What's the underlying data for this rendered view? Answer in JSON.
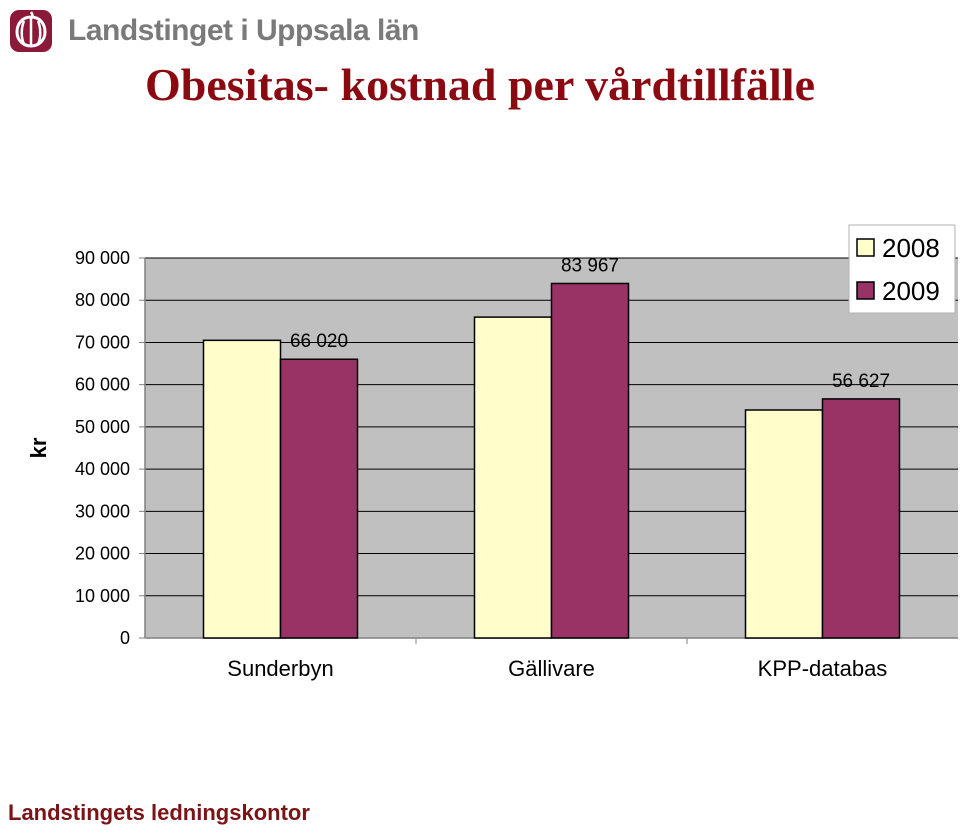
{
  "header": {
    "logo_text": "Landstinget i Uppsala län"
  },
  "footer": {
    "text": "Landstingets ledningskontor"
  },
  "colors": {
    "title": "#8b0a12",
    "plot_bg": "#c0c0c0",
    "series_2008": "#ffffcc",
    "series_2009": "#993366",
    "footer": "#7a1416",
    "logo": "#8b1a3a"
  },
  "chart_data": {
    "type": "bar",
    "title": "Obesitas- kostnad per vårdtillfälle",
    "xlabel": "",
    "ylabel": "kr",
    "categories": [
      "Sunderbyn",
      "Gällivare",
      "KPP-databas"
    ],
    "series": [
      {
        "name": "2008",
        "values": [
          70500,
          76000,
          54000
        ],
        "labels": [
          "",
          "",
          ""
        ]
      },
      {
        "name": "2009",
        "values": [
          66020,
          83967,
          56627
        ],
        "labels": [
          "66 020",
          "83 967",
          "56 627"
        ]
      }
    ],
    "ylim": [
      0,
      90000
    ],
    "yticks": [
      0,
      10000,
      20000,
      30000,
      40000,
      50000,
      60000,
      70000,
      80000,
      90000
    ],
    "ytick_labels": [
      "0",
      "10 000",
      "20 000",
      "30 000",
      "40 000",
      "50 000",
      "60 000",
      "70 000",
      "80 000",
      "90 000"
    ],
    "grid": true,
    "legend": "top-right"
  }
}
